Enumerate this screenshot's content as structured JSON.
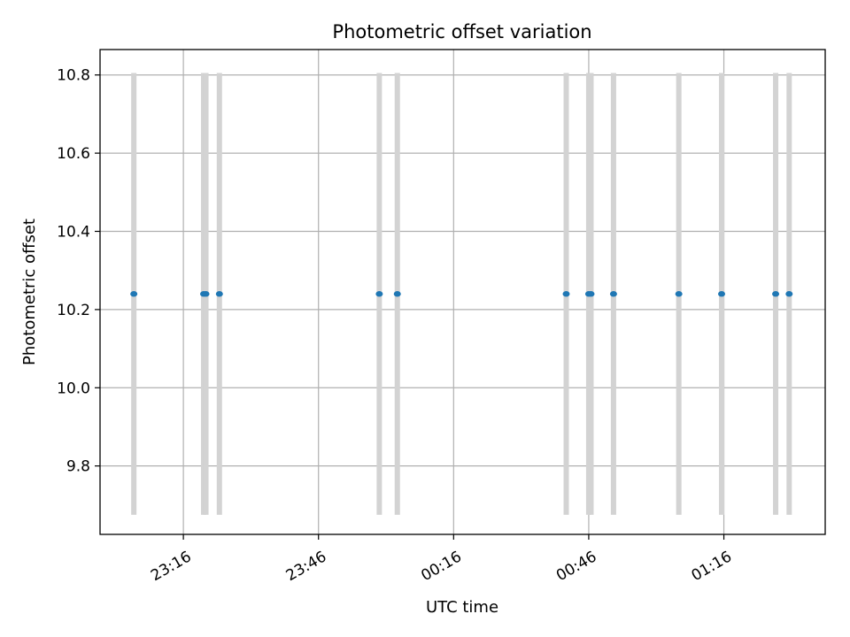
{
  "chart_data": {
    "type": "scatter",
    "title": "Photometric offset variation",
    "xlabel": "UTC time",
    "ylabel": "Photometric offset",
    "x_ticks": [
      "23:16",
      "23:46",
      "00:16",
      "00:46",
      "01:16"
    ],
    "y_ticks": [
      "9.8",
      "10.0",
      "10.2",
      "10.4",
      "10.6",
      "10.8"
    ],
    "xlim": [
      "22:57.5",
      "01:38.5"
    ],
    "ylim": [
      9.625,
      10.865
    ],
    "grid": true,
    "errorbar_color": "#d3d3d3",
    "marker_color": "#1f77b4",
    "points": [
      {
        "x": "23:05",
        "y": 10.24,
        "yerr": 0.565
      },
      {
        "x": "23:20.5",
        "y": 10.24,
        "yerr": 0.565
      },
      {
        "x": "23:21",
        "y": 10.24,
        "yerr": 0.565
      },
      {
        "x": "23:24",
        "y": 10.24,
        "yerr": 0.565
      },
      {
        "x": "23:59.5",
        "y": 10.24,
        "yerr": 0.565
      },
      {
        "x": "00:03.5",
        "y": 10.24,
        "yerr": 0.565
      },
      {
        "x": "00:41",
        "y": 10.24,
        "yerr": 0.565
      },
      {
        "x": "00:46",
        "y": 10.24,
        "yerr": 0.565
      },
      {
        "x": "00:46.5",
        "y": 10.24,
        "yerr": 0.565
      },
      {
        "x": "00:51.5",
        "y": 10.24,
        "yerr": 0.565
      },
      {
        "x": "01:06",
        "y": 10.24,
        "yerr": 0.565
      },
      {
        "x": "01:15.5",
        "y": 10.24,
        "yerr": 0.565
      },
      {
        "x": "01:27.5",
        "y": 10.24,
        "yerr": 0.565
      },
      {
        "x": "01:30.5",
        "y": 10.24,
        "yerr": 0.565
      }
    ]
  }
}
